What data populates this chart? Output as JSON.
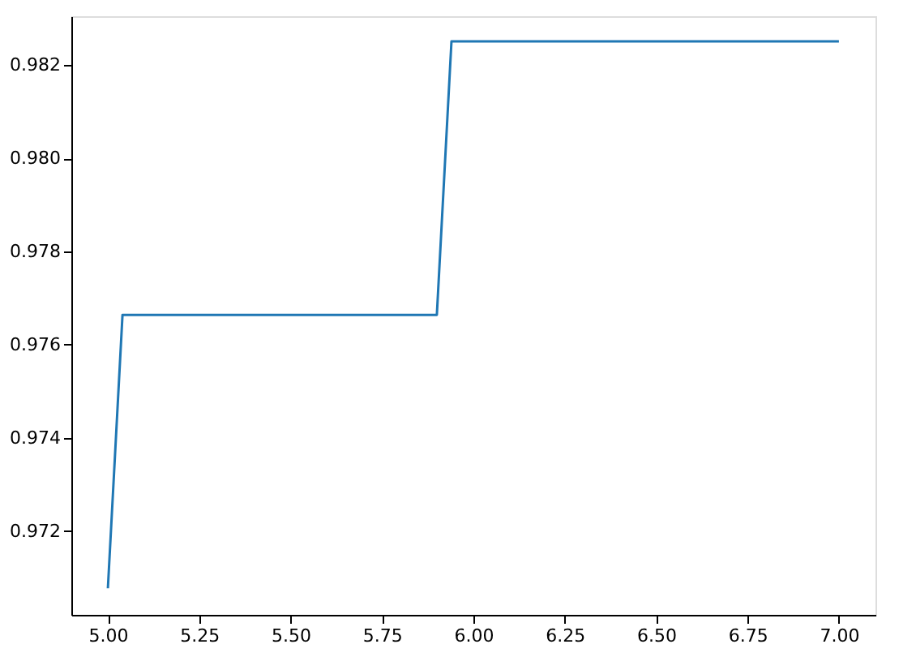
{
  "chart_data": {
    "type": "line",
    "x": [
      5.0,
      5.04,
      5.9,
      5.94,
      7.0
    ],
    "series": [
      {
        "color": "#1f77b4",
        "values": [
          0.97077,
          0.97664,
          0.97664,
          0.98251,
          0.98251
        ]
      }
    ],
    "xlim": [
      4.9,
      7.1
    ],
    "xticks": [
      {
        "value": 5,
        "label": "5.00"
      },
      {
        "value": 5.25,
        "label": "5.25"
      },
      {
        "value": 5.5,
        "label": "5.50"
      },
      {
        "value": 5.75,
        "label": "5.75"
      },
      {
        "value": 6,
        "label": "6.00"
      },
      {
        "value": 6.25,
        "label": "6.25"
      },
      {
        "value": 6.5,
        "label": "6.50"
      },
      {
        "value": 6.75,
        "label": "6.75"
      },
      {
        "value": 7,
        "label": "7.00"
      }
    ],
    "ylim": [
      0.9702,
      0.98305
    ],
    "yticks": [
      0.972,
      0.974,
      0.976,
      0.978,
      {
        "value": 0.98,
        "label": "0.980"
      },
      0.982
    ],
    "grid": false,
    "marker": "none",
    "line_style": "solid"
  }
}
